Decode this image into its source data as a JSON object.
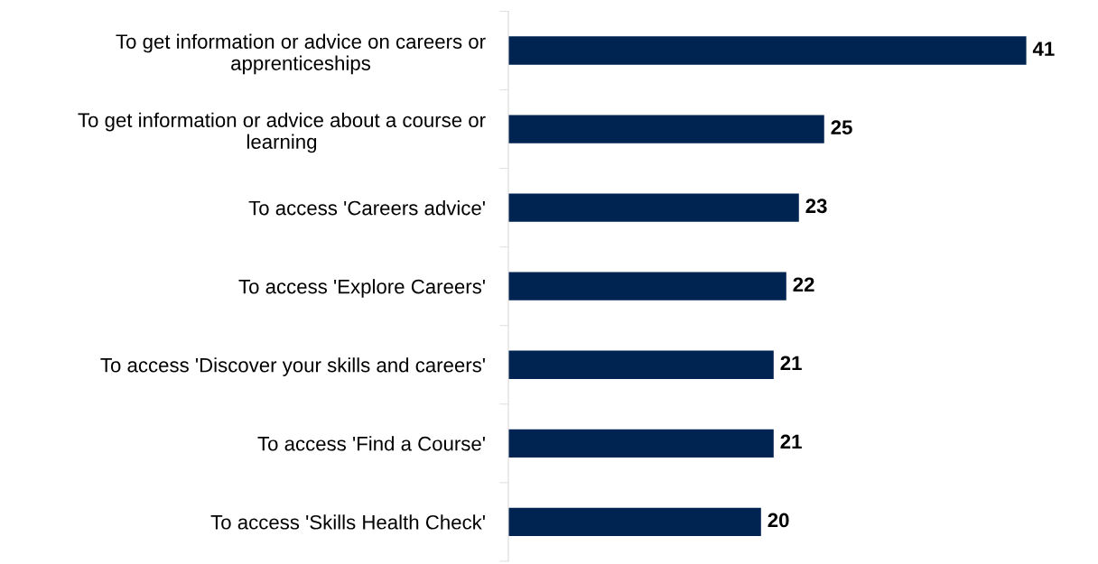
{
  "chart_data": {
    "type": "bar",
    "orientation": "horizontal",
    "categories": [
      "To get information or advice on careers or\napprenticeships",
      "To get information or advice about a course or\nlearning",
      "To access 'Careers advice'",
      "To access 'Explore Careers'",
      "To access 'Discover your skills and careers'",
      "To access 'Find a Course'",
      "To access 'Skills Health Check'"
    ],
    "values": [
      41,
      25,
      23,
      22,
      21,
      21,
      20
    ],
    "color": "#002452",
    "data_labels": true,
    "grid": false,
    "legend": false,
    "tick_labels": "y"
  }
}
